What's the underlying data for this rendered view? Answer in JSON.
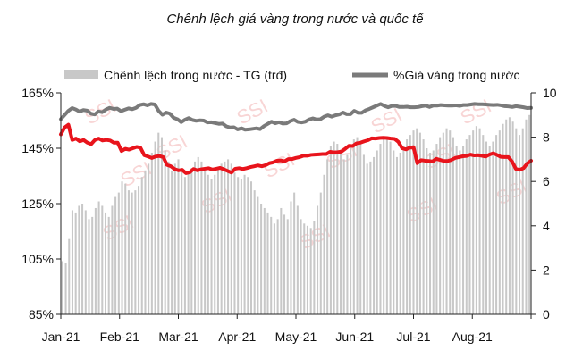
{
  "chart_data": {
    "type": "bar+line",
    "title": "Chênh lệch giá vàng trong nước và quốc tế",
    "x_ticks": [
      "Jan-21",
      "Feb-21",
      "Mar-21",
      "Apr-21",
      "May-21",
      "Jun-21",
      "Jul-21",
      "Aug-21"
    ],
    "left_axis": {
      "ticks": [
        "85%",
        "105%",
        "125%",
        "145%",
        "165%"
      ],
      "range": [
        85,
        165
      ]
    },
    "right_axis": {
      "ticks": [
        "0",
        "2",
        "4",
        "6",
        "8",
        "10"
      ],
      "range": [
        0,
        10
      ]
    },
    "legend": {
      "bar_label": "Chênh lệch trong nước - TG (trđ)",
      "line_label": "%Giá vàng trong nước"
    },
    "colors": {
      "bars": "#c8c8c8",
      "gray_line": "#7a7a7a",
      "red_line": "#e8141c",
      "watermark": "#f3b4b4"
    },
    "watermark": "SSI",
    "series": [
      {
        "name": "Chênh lệch trong nước - TG (trđ)",
        "kind": "bar",
        "axis": "right",
        "values": [
          2.4,
          2.3,
          3.4,
          4.7,
          4.6,
          4.9,
          5.0,
          4.7,
          4.3,
          4.4,
          4.8,
          5.1,
          4.9,
          4.6,
          4.4,
          4.9,
          5.3,
          5.5,
          6.0,
          5.9,
          5.6,
          5.5,
          5.6,
          5.8,
          6.2,
          6.5,
          6.8,
          7.3,
          7.8,
          8.2,
          8.0,
          7.4,
          6.9,
          6.5,
          6.8,
          7.0,
          6.6,
          6.2,
          6.4,
          6.6,
          6.9,
          7.1,
          6.9,
          6.6,
          6.3,
          6.1,
          6.3,
          6.6,
          6.8,
          6.9,
          7.0,
          6.8,
          6.4,
          6.2,
          6.1,
          6.3,
          6.2,
          6.0,
          5.6,
          5.3,
          5.0,
          4.8,
          4.6,
          4.4,
          4.1,
          4.3,
          4.8,
          4.5,
          4.3,
          5.1,
          5.5,
          4.9,
          4.3,
          4.1,
          4.0,
          3.9,
          4.2,
          4.9,
          5.5,
          6.3,
          7.0,
          7.6,
          7.8,
          7.7,
          7.4,
          7.0,
          7.2,
          7.6,
          7.9,
          8.0,
          7.7,
          7.2,
          6.8,
          6.9,
          7.1,
          7.4,
          7.7,
          7.9,
          8.0,
          7.8,
          7.4,
          7.1,
          7.3,
          7.6,
          7.9,
          8.1,
          8.3,
          8.4,
          8.2,
          7.9,
          7.5,
          7.3,
          7.4,
          7.7,
          8.0,
          8.2,
          8.4,
          8.3,
          8.0,
          7.6,
          7.4,
          7.6,
          7.9,
          8.1,
          8.3,
          8.5,
          8.4,
          8.1,
          7.8,
          7.6,
          7.8,
          8.1,
          8.3,
          8.6,
          8.8,
          8.9,
          8.7,
          8.4,
          8.1,
          8.4,
          8.8,
          9.0
        ]
      },
      {
        "name": "%Giá vàng trong nước",
        "kind": "line",
        "axis": "left",
        "color": "gray",
        "values": [
          155.5,
          157.0,
          158.5,
          159.5,
          159.0,
          158.2,
          158.8,
          158.6,
          157.5,
          157.2,
          158.3,
          158.0,
          159.0,
          159.6,
          159.2,
          159.3,
          158.4,
          158.9,
          159.4,
          159.1,
          159.6,
          160.6,
          160.9,
          160.5,
          161.0,
          160.8,
          158.5,
          157.1,
          157.9,
          157.5,
          156.0,
          155.5,
          154.4,
          155.3,
          155.9,
          155.2,
          154.9,
          155.1,
          155.0,
          154.3,
          154.4,
          154.1,
          153.8,
          153.9,
          152.9,
          152.5,
          152.6,
          151.8,
          152.2,
          151.7,
          151.8,
          152.0,
          152.2,
          151.9,
          153.0,
          153.8,
          154.6,
          154.0,
          154.4,
          153.9,
          154.0,
          154.8,
          155.3,
          154.5,
          154.3,
          154.6,
          155.4,
          155.8,
          155.4,
          155.5,
          156.4,
          156.9,
          156.4,
          156.9,
          157.2,
          157.9,
          157.3,
          157.3,
          158.5,
          157.8,
          157.8,
          158.7,
          159.2,
          159.8,
          160.4,
          161.0,
          160.3,
          159.8,
          160.3,
          160.3,
          159.9,
          159.9,
          160.0,
          159.8,
          159.8,
          159.9,
          160.2,
          160.4,
          159.9,
          160.4,
          160.4,
          160.6,
          160.5,
          160.4,
          160.4,
          160.5,
          160.3,
          160.6,
          160.6,
          160.8,
          161.0,
          160.9,
          160.9,
          160.8,
          160.7,
          160.6,
          160.7,
          160.5,
          160.2,
          160.1,
          159.9,
          160.2,
          160.0,
          159.8,
          159.5,
          159.6
        ]
      },
      {
        "name": "%Giá vàng trong nước",
        "kind": "line",
        "axis": "left",
        "color": "red",
        "values": [
          150.0,
          152.5,
          153.5,
          148.0,
          148.5,
          147.5,
          148.0,
          147.0,
          146.5,
          148.0,
          148.5,
          147.8,
          148.0,
          147.8,
          147.0,
          147.0,
          144.0,
          144.8,
          144.5,
          145.0,
          145.5,
          145.2,
          142.5,
          142.0,
          141.5,
          142.0,
          142.2,
          141.8,
          139.0,
          138.5,
          137.5,
          137.0,
          137.2,
          136.0,
          136.3,
          137.5,
          137.0,
          137.4,
          137.6,
          137.8,
          137.3,
          137.6,
          137.9,
          137.4,
          136.8,
          136.2,
          137.6,
          137.8,
          137.5,
          137.8,
          138.2,
          138.5,
          138.8,
          138.5,
          138.9,
          139.6,
          139.9,
          140.5,
          140.6,
          140.3,
          141.1,
          141.1,
          141.5,
          141.8,
          142.3,
          142.3,
          142.6,
          142.7,
          142.8,
          142.9,
          142.9,
          143.7,
          143.5,
          143.6,
          143.8,
          144.8,
          145.9,
          145.8,
          146.8,
          147.0,
          147.5,
          147.9,
          148.6,
          148.5,
          148.7,
          148.8,
          148.7,
          148.5,
          148.4,
          147.3,
          145.0,
          144.6,
          145.2,
          145.4,
          139.6,
          140.7,
          140.5,
          140.4,
          140.2,
          141.2,
          140.8,
          140.4,
          140.4,
          140.8,
          141.5,
          141.8,
          142.1,
          142.2,
          142.7,
          142.4,
          142.5,
          142.3,
          142.0,
          142.7,
          143.2,
          142.6,
          141.9,
          141.8,
          141.8,
          140.2,
          137.5,
          137.2,
          137.8,
          139.5,
          140.5
        ]
      }
    ]
  }
}
